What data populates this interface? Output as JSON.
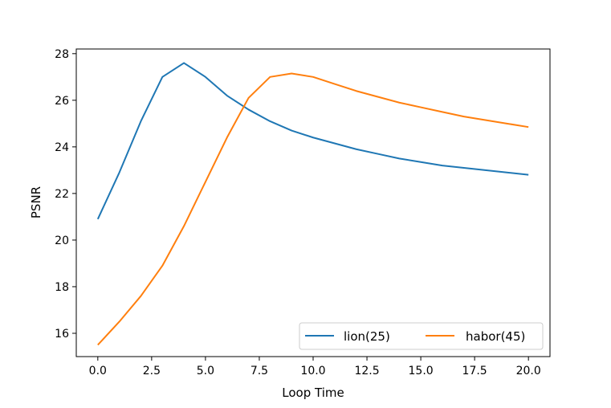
{
  "chart_data": {
    "type": "line",
    "title": "",
    "xlabel": "Loop Time",
    "ylabel": "PSNR",
    "xlim": [
      -1,
      21
    ],
    "ylim": [
      15,
      28.2
    ],
    "xticks": [
      0,
      2.5,
      5,
      7.5,
      10,
      12.5,
      15,
      17.5,
      20
    ],
    "xtick_labels": [
      "0.0",
      "2.5",
      "5.0",
      "7.5",
      "10.0",
      "12.5",
      "15.0",
      "17.5",
      "20.0"
    ],
    "yticks": [
      16,
      18,
      20,
      22,
      24,
      26,
      28
    ],
    "ytick_labels": [
      "16",
      "18",
      "20",
      "22",
      "24",
      "26",
      "28"
    ],
    "grid": false,
    "legend_position": "lower-right",
    "x": [
      0,
      1,
      2,
      3,
      4,
      5,
      6,
      7,
      8,
      9,
      10,
      11,
      12,
      13,
      14,
      15,
      16,
      17,
      18,
      19,
      20
    ],
    "series": [
      {
        "name": "lion(25)",
        "color": "#1f77b4",
        "values": [
          20.9,
          22.9,
          25.1,
          27.0,
          27.6,
          27.0,
          26.2,
          25.6,
          25.1,
          24.7,
          24.4,
          24.15,
          23.9,
          23.7,
          23.5,
          23.35,
          23.2,
          23.1,
          23.0,
          22.9,
          22.8
        ]
      },
      {
        "name": "habor(45)",
        "color": "#ff7f0e",
        "values": [
          15.5,
          16.5,
          17.6,
          18.9,
          20.6,
          22.5,
          24.4,
          26.1,
          27.0,
          27.15,
          27.0,
          26.7,
          26.4,
          26.15,
          25.9,
          25.7,
          25.5,
          25.3,
          25.15,
          25.0,
          24.85
        ]
      }
    ]
  }
}
